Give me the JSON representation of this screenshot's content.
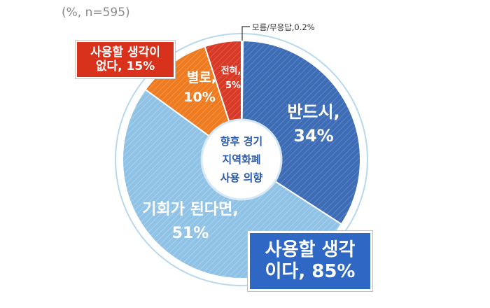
{
  "note": "(%, n=595)",
  "chart_data": {
    "type": "pie",
    "title": "향후 경기 지역화폐 사용 의향",
    "slices": [
      {
        "label": "모름/무응답",
        "value": 0.2,
        "color": "#1f3d7a"
      },
      {
        "label": "반드시",
        "value": 34,
        "color": "#3f6db5"
      },
      {
        "label": "기회가 된다면",
        "value": 51,
        "color": "#92c4e6"
      },
      {
        "label": "별로",
        "value": 10,
        "color": "#ee7b20"
      },
      {
        "label": "전혀",
        "value": 5,
        "color": "#d93a28"
      }
    ],
    "slice_labels": {
      "unknown": "모름/무응답,0.2%",
      "surely_1": "반드시,",
      "surely_2": "34%",
      "chance_1": "기회가 된다면,",
      "chance_2": "51%",
      "rarely_1": "별로,",
      "rarely_2": "10%",
      "never_1": "전혀,",
      "never_2": "5%"
    },
    "center_label": [
      "향후 경기",
      "지역화폐",
      "사용 의향"
    ]
  },
  "callouts": {
    "no_intent": [
      "사용할 생각이",
      "없다, 15%"
    ],
    "intent": [
      "사용할 생각",
      "이다, 85%"
    ]
  }
}
